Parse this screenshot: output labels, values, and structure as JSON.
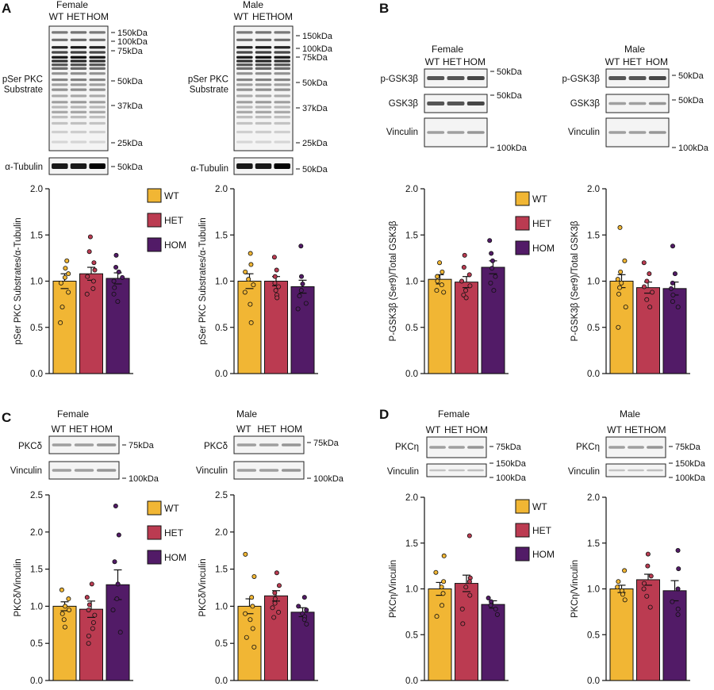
{
  "colors": {
    "WT": "#f1b634",
    "HET": "#bb3b51",
    "HOM": "#521b67",
    "axis": "#111111"
  },
  "groups": [
    "WT",
    "HET",
    "HOM"
  ],
  "legend": [
    "WT",
    "HET",
    "HOM"
  ],
  "panel_labels": [
    "A",
    "B",
    "C",
    "D"
  ],
  "blots": [
    {
      "id": "A-female",
      "title": "Female",
      "lanes": [
        "WT",
        "HET",
        "HOM"
      ],
      "rows": [
        {
          "label_lines": [
            "pSer PKC",
            "Substrate"
          ],
          "style": "multi",
          "markers": [
            "150kDa",
            "100kDa",
            "75kDa",
            "50kDa",
            "37kDa",
            "25kDa"
          ]
        },
        {
          "label_lines": [
            "α-Tubulin"
          ],
          "style": "dark",
          "markers": [
            "50kDa"
          ]
        }
      ]
    },
    {
      "id": "A-male",
      "title": "Male",
      "lanes": [
        "WT",
        "HET",
        "HOM"
      ],
      "rows": [
        {
          "label_lines": [
            "pSer PKC",
            "Substrate"
          ],
          "style": "multi",
          "markers": [
            "150kDa",
            "100kDa",
            "75kDa",
            "50kDa",
            "37kDa",
            "25kDa"
          ]
        },
        {
          "label_lines": [
            "α-Tubulin"
          ],
          "style": "dark",
          "markers": [
            "50kDa"
          ]
        }
      ]
    },
    {
      "id": "B-female",
      "title": "Female",
      "lanes": [
        "WT",
        "HET",
        "HOM"
      ],
      "rows": [
        {
          "label_lines": [
            "p-GSK3β"
          ],
          "style": "medium",
          "markers": [
            "50kDa"
          ]
        },
        {
          "label_lines": [
            "GSK3β"
          ],
          "style": "medium",
          "markers": [
            "50kDa"
          ]
        },
        {
          "label_lines": [
            "Vinculin"
          ],
          "style": "light",
          "markers": [
            "100kDa"
          ]
        }
      ]
    },
    {
      "id": "B-male",
      "title": "Male",
      "lanes": [
        "WT",
        "HET",
        "HOM"
      ],
      "rows": [
        {
          "label_lines": [
            "p-GSK3β"
          ],
          "style": "medium",
          "markers": [
            "50kDa"
          ]
        },
        {
          "label_lines": [
            "GSK3β"
          ],
          "style": "light",
          "markers": [
            "50kDa"
          ]
        },
        {
          "label_lines": [
            "Vinculin"
          ],
          "style": "light",
          "markers": [
            "100kDa"
          ]
        }
      ]
    },
    {
      "id": "C-female",
      "title": "Female",
      "lanes": [
        "WT",
        "HET",
        "HOM"
      ],
      "rows": [
        {
          "label_lines": [
            "PKCδ"
          ],
          "style": "light",
          "markers": [
            "75kDa"
          ]
        },
        {
          "label_lines": [
            "Vinculin"
          ],
          "style": "light",
          "markers": [
            "100kDa"
          ]
        }
      ]
    },
    {
      "id": "C-male",
      "title": "Male",
      "lanes": [
        "WT",
        "HET",
        "HOM"
      ],
      "rows": [
        {
          "label_lines": [
            "PKCδ"
          ],
          "style": "light",
          "markers": [
            "75kDa"
          ]
        },
        {
          "label_lines": [
            "Vinculin"
          ],
          "style": "light",
          "markers": [
            "100kDa"
          ]
        }
      ]
    },
    {
      "id": "D-female",
      "title": "Female",
      "lanes": [
        "WT",
        "HET",
        "HOM"
      ],
      "rows": [
        {
          "label_lines": [
            "PKCη"
          ],
          "style": "light",
          "markers": [
            "75kDa"
          ]
        },
        {
          "label_lines": [
            "Vinculin"
          ],
          "style": "faint",
          "markers": [
            "150kDa",
            "100kDa"
          ]
        }
      ]
    },
    {
      "id": "D-male",
      "title": "Male",
      "lanes": [
        "WT",
        "HET",
        "HOM"
      ],
      "rows": [
        {
          "label_lines": [
            "PKCη"
          ],
          "style": "light",
          "markers": [
            "75kDa"
          ]
        },
        {
          "label_lines": [
            "Vinculin"
          ],
          "style": "faint",
          "markers": [
            "150kDa",
            "100kDa"
          ]
        }
      ]
    }
  ],
  "chart_data": [
    {
      "id": "A-female",
      "type": "bar",
      "categories": [
        "WT",
        "HET",
        "HOM"
      ],
      "ylabel": "pSer PKC Substrates/α-Tubulin",
      "ylim": [
        0,
        2.0
      ],
      "yticks": [
        "0.0",
        "0.5",
        "1.0",
        "1.5",
        "2.0"
      ],
      "values": [
        1.0,
        1.08,
        1.03
      ],
      "errors": [
        0.08,
        0.07,
        0.06
      ],
      "points": [
        [
          1.22,
          1.14,
          1.08,
          1.04,
          0.98,
          0.88,
          0.72,
          0.55
        ],
        [
          1.48,
          1.32,
          1.2,
          1.12,
          1.05,
          1.0,
          0.92,
          0.86
        ],
        [
          1.28,
          1.15,
          1.1,
          1.04,
          1.0,
          0.93,
          0.86,
          0.78
        ]
      ]
    },
    {
      "id": "A-male",
      "type": "bar",
      "categories": [
        "WT",
        "HET",
        "HOM"
      ],
      "ylabel": "pSer PKC Substrates/α-Tubulin",
      "ylim": [
        0,
        2.0
      ],
      "yticks": [
        "0.0",
        "0.5",
        "1.0",
        "1.5",
        "2.0"
      ],
      "values": [
        1.0,
        1.0,
        0.94
      ],
      "errors": [
        0.08,
        0.05,
        0.07
      ],
      "points": [
        [
          1.3,
          1.18,
          1.1,
          1.02,
          0.96,
          0.88,
          0.75,
          0.55
        ],
        [
          1.26,
          1.12,
          1.05,
          0.98,
          0.94,
          0.9,
          0.85,
          0.82
        ],
        [
          1.38,
          1.05,
          0.97,
          0.9,
          0.84,
          0.76,
          0.7
        ]
      ]
    },
    {
      "id": "B-female",
      "type": "bar",
      "categories": [
        "WT",
        "HET",
        "HOM"
      ],
      "ylabel": "P-GSK3β (Ser9)/Total GSK3β",
      "ylim": [
        0,
        2.0
      ],
      "yticks": [
        "0.0",
        "0.5",
        "1.0",
        "1.5",
        "2.0"
      ],
      "values": [
        1.02,
        0.99,
        1.15
      ],
      "errors": [
        0.05,
        0.06,
        0.07
      ],
      "points": [
        [
          1.2,
          1.1,
          1.05,
          1.0,
          0.96,
          0.9,
          0.88
        ],
        [
          1.28,
          1.15,
          1.07,
          1.0,
          0.95,
          0.9,
          0.85,
          0.82
        ],
        [
          1.44,
          1.3,
          1.22,
          1.14,
          1.05,
          0.98,
          0.9
        ]
      ]
    },
    {
      "id": "B-male",
      "type": "bar",
      "categories": [
        "WT",
        "HET",
        "HOM"
      ],
      "ylabel": "P-GSK3β (Ser9)/Total GSK3β",
      "ylim": [
        0,
        2.0
      ],
      "yticks": [
        "0.0",
        "0.5",
        "1.0",
        "1.5",
        "2.0"
      ],
      "values": [
        1.0,
        0.93,
        0.92
      ],
      "errors": [
        0.07,
        0.06,
        0.07
      ],
      "points": [
        [
          1.58,
          1.22,
          1.1,
          1.02,
          0.98,
          0.93,
          0.86,
          0.72,
          0.5
        ],
        [
          1.2,
          1.08,
          1.0,
          0.94,
          0.88,
          0.8,
          0.72
        ],
        [
          1.38,
          1.08,
          0.98,
          0.92,
          0.85,
          0.78,
          0.72
        ]
      ]
    },
    {
      "id": "C-female",
      "type": "bar",
      "categories": [
        "WT",
        "HET",
        "HOM"
      ],
      "ylabel": "PKCδ/Vinculin",
      "ylim": [
        0,
        2.5
      ],
      "yticks": [
        "0.0",
        "0.5",
        "1.0",
        "1.5",
        "2.0",
        "2.5"
      ],
      "values": [
        1.0,
        0.96,
        1.29
      ],
      "errors": [
        0.06,
        0.11,
        0.2
      ],
      "points": [
        [
          1.22,
          1.1,
          1.0,
          0.95,
          0.9,
          0.82,
          0.72
        ],
        [
          1.3,
          1.12,
          1.02,
          0.95,
          0.88,
          0.78,
          0.7,
          0.6,
          0.5
        ],
        [
          2.35,
          1.96,
          1.6,
          1.3,
          1.1,
          0.95,
          0.65
        ]
      ]
    },
    {
      "id": "C-male",
      "type": "bar",
      "categories": [
        "WT",
        "HET",
        "HOM"
      ],
      "ylabel": "PKCδ/Vinculin",
      "ylim": [
        0,
        2.5
      ],
      "yticks": [
        "0.0",
        "0.5",
        "1.0",
        "1.5",
        "2.0",
        "2.5"
      ],
      "values": [
        1.0,
        1.14,
        0.92
      ],
      "errors": [
        0.1,
        0.07,
        0.06
      ],
      "points": [
        [
          1.7,
          1.4,
          1.12,
          1.0,
          0.9,
          0.82,
          0.7,
          0.58,
          0.45
        ],
        [
          1.45,
          1.28,
          1.18,
          1.1,
          1.04,
          0.98,
          0.92,
          0.85
        ],
        [
          1.12,
          1.0,
          0.95,
          0.9,
          0.86,
          0.82,
          0.76
        ]
      ]
    },
    {
      "id": "D-female",
      "type": "bar",
      "categories": [
        "WT",
        "HET",
        "HOM"
      ],
      "ylabel": "PKCη/Vinculin",
      "ylim": [
        0,
        2.0
      ],
      "yticks": [
        "0.0",
        "0.5",
        "1.0",
        "1.5",
        "2.0"
      ],
      "values": [
        1.0,
        1.06,
        0.83
      ],
      "errors": [
        0.07,
        0.09,
        0.04
      ],
      "points": [
        [
          1.36,
          1.18,
          1.08,
          1.02,
          0.95,
          0.82,
          0.7
        ],
        [
          1.58,
          1.12,
          1.08,
          1.02,
          0.93,
          0.78,
          0.62
        ],
        [
          0.9,
          0.86,
          0.82,
          0.78,
          0.72
        ]
      ]
    },
    {
      "id": "D-male",
      "type": "bar",
      "categories": [
        "WT",
        "HET",
        "HOM"
      ],
      "ylabel": "PKCη/Vinculin",
      "ylim": [
        0,
        2.0
      ],
      "yticks": [
        "0.0",
        "0.5",
        "1.0",
        "1.5",
        "2.0"
      ],
      "values": [
        1.0,
        1.1,
        0.98
      ],
      "errors": [
        0.04,
        0.06,
        0.11
      ],
      "points": [
        [
          1.2,
          1.08,
          1.02,
          0.98,
          0.94,
          0.88
        ],
        [
          1.38,
          1.25,
          1.14,
          1.06,
          1.0,
          0.92,
          0.8
        ],
        [
          1.42,
          1.22,
          1.0,
          0.86,
          0.78,
          0.72
        ]
      ]
    }
  ]
}
